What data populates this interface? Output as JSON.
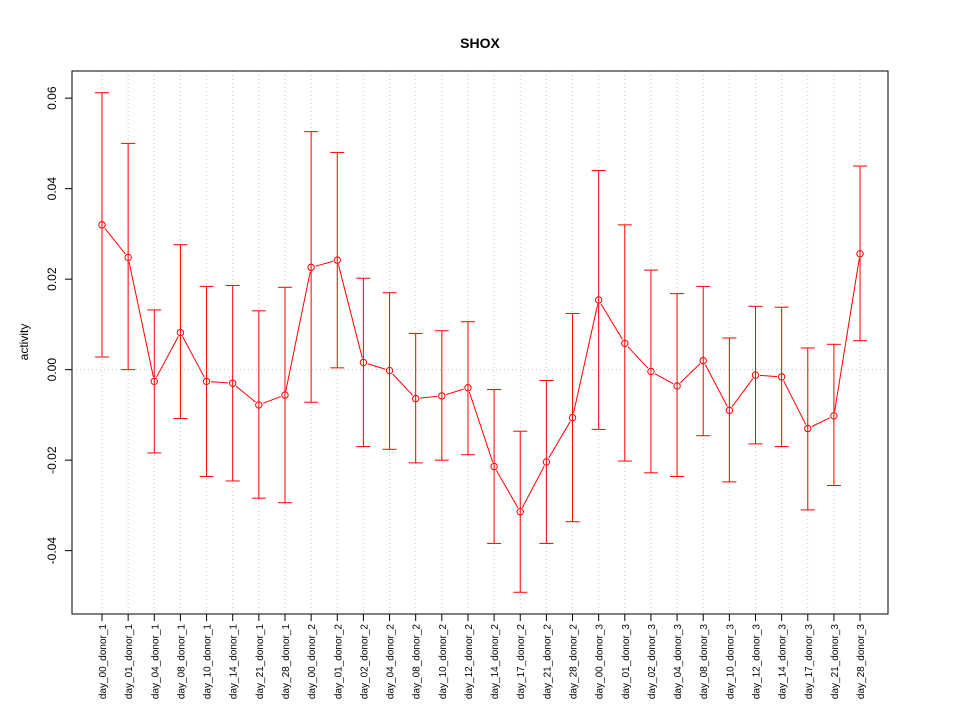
{
  "chart_data": {
    "type": "line",
    "title": "SHOX",
    "xlabel": "",
    "ylabel": "activity",
    "ylim": [
      -0.054,
      0.066
    ],
    "yticks": [
      -0.04,
      -0.02,
      0.0,
      0.02,
      0.04,
      0.06
    ],
    "ytick_labels": [
      "-0.04",
      "-0.02",
      "0.00",
      "0.02",
      "0.04",
      "0.06"
    ],
    "grid": "dotted",
    "categories": [
      "day_00_donor_1",
      "day_01_donor_1",
      "day_04_donor_1",
      "day_08_donor_1",
      "day_10_donor_1",
      "day_14_donor_1",
      "day_21_donor_1",
      "day_28_donor_1",
      "day_00_donor_2",
      "day_01_donor_2",
      "day_02_donor_2",
      "day_04_donor_2",
      "day_08_donor_2",
      "day_10_donor_2",
      "day_12_donor_2",
      "day_14_donor_2",
      "day_17_donor_2",
      "day_21_donor_2",
      "day_28_donor_2",
      "day_00_donor_3",
      "day_01_donor_3",
      "day_02_donor_3",
      "day_04_donor_3",
      "day_08_donor_3",
      "day_10_donor_3",
      "day_12_donor_3",
      "day_14_donor_3",
      "day_17_donor_3",
      "day_21_donor_3",
      "day_28_donor_3"
    ],
    "series": [
      {
        "color": "#ff0000",
        "values": [
          0.032,
          0.0248,
          -0.0026,
          0.0082,
          -0.0026,
          -0.003,
          -0.0078,
          -0.0056,
          0.0226,
          0.0242,
          0.0016,
          -0.0002,
          -0.0064,
          -0.0058,
          -0.004,
          -0.0214,
          -0.0314,
          -0.0204,
          -0.0106,
          0.0154,
          0.0058,
          -0.0004,
          -0.0036,
          0.002,
          -0.009,
          -0.0012,
          -0.0016,
          -0.013,
          -0.0102,
          0.0256
        ],
        "upper": [
          0.0612,
          0.05,
          0.0132,
          0.0276,
          0.0184,
          0.0186,
          0.013,
          0.0182,
          0.0526,
          0.048,
          0.0202,
          0.017,
          0.008,
          0.0086,
          0.0106,
          -0.0044,
          -0.0136,
          -0.0024,
          0.0124,
          0.044,
          0.032,
          0.022,
          0.0168,
          0.0184,
          0.007,
          0.014,
          0.0138,
          0.0048,
          0.0056,
          0.045
        ],
        "lower": [
          0.0028,
          0.0,
          -0.0184,
          -0.0108,
          -0.0236,
          -0.0246,
          -0.0284,
          -0.0294,
          -0.0072,
          0.0004,
          -0.017,
          -0.0176,
          -0.0206,
          -0.02,
          -0.0188,
          -0.0384,
          -0.0492,
          -0.0384,
          -0.0336,
          -0.0132,
          -0.0202,
          -0.0228,
          -0.0236,
          -0.0146,
          -0.0248,
          -0.0164,
          -0.017,
          -0.031,
          -0.0256,
          0.0064
        ]
      }
    ]
  }
}
